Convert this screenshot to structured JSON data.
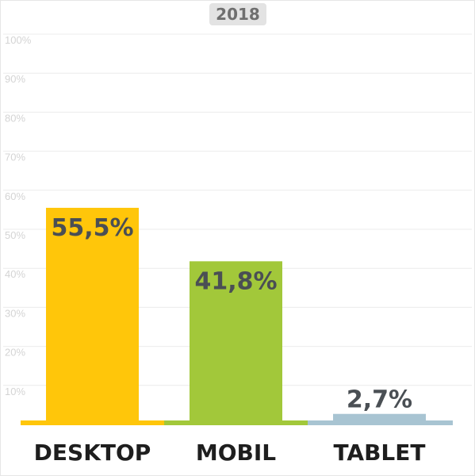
{
  "chart_data": {
    "type": "bar",
    "title": "2018",
    "categories": [
      "DESKTOP",
      "MOBIL",
      "TABLET"
    ],
    "values": [
      55.5,
      41.8,
      2.7
    ],
    "value_labels": [
      "55,5%",
      "41,8%",
      "2,7%"
    ],
    "colors": [
      "#ffc60a",
      "#a2c83a",
      "#a8c4d2"
    ],
    "yticks": [
      "10%",
      "20%",
      "30%",
      "40%",
      "50%",
      "60%",
      "70%",
      "80%",
      "90%",
      "100%"
    ],
    "ylim": [
      0,
      100
    ],
    "grid": true,
    "xlabel": "",
    "ylabel": ""
  }
}
